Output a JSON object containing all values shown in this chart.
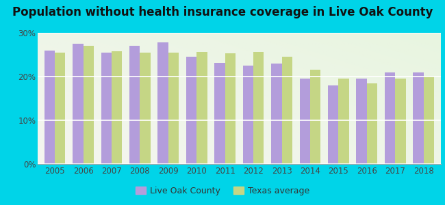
{
  "title": "Population without health insurance coverage in Live Oak County",
  "years": [
    2005,
    2006,
    2007,
    2008,
    2009,
    2010,
    2011,
    2012,
    2013,
    2014,
    2015,
    2016,
    2017,
    2018
  ],
  "live_oak": [
    26.0,
    27.5,
    25.5,
    27.0,
    27.8,
    24.5,
    23.2,
    22.5,
    23.0,
    19.5,
    18.0,
    19.5,
    21.0,
    21.0
  ],
  "texas": [
    25.5,
    27.0,
    25.8,
    25.5,
    25.5,
    25.7,
    25.3,
    25.7,
    24.5,
    21.5,
    19.5,
    18.5,
    19.5,
    20.0
  ],
  "bar_color_live_oak": "#b39ddb",
  "bar_color_texas": "#c5d685",
  "outer_bg_color": "#00d4e8",
  "plot_bg_top_right": "#f5f5f0",
  "plot_bg_bottom_left": "#e8f5e0",
  "ylim": [
    0,
    30
  ],
  "yticks": [
    0,
    10,
    20,
    30
  ],
  "ytick_labels": [
    "0%",
    "10%",
    "20%",
    "30%"
  ],
  "legend_live_oak": "Live Oak County",
  "legend_texas": "Texas average",
  "title_fontsize": 12,
  "tick_fontsize": 8.5
}
